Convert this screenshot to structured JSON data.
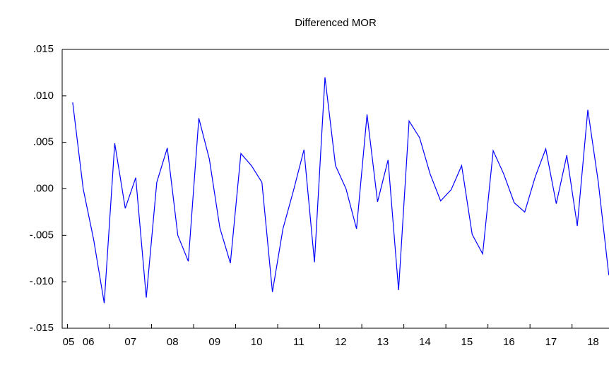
{
  "chart_data": {
    "type": "line",
    "title": "Differenced MOR",
    "categories": [
      "05",
      null,
      "06",
      null,
      null,
      null,
      "07",
      null,
      null,
      null,
      "08",
      null,
      null,
      null,
      "09",
      null,
      null,
      null,
      "10",
      null,
      null,
      null,
      "11",
      null,
      null,
      null,
      "12",
      null,
      null,
      null,
      "13",
      null,
      null,
      null,
      "14",
      null,
      null,
      null,
      "15",
      null,
      null,
      null,
      "16",
      null,
      null,
      null,
      "17",
      null,
      null,
      null,
      "18",
      null,
      null
    ],
    "series": [
      {
        "name": "MOR",
        "color": "#0000ff",
        "values": [
          null,
          0.0093,
          0.0,
          -0.0055,
          -0.0123,
          0.0049,
          -0.0021,
          0.0012,
          -0.0117,
          0.0007,
          0.0044,
          -0.005,
          -0.0078,
          0.0076,
          0.0032,
          -0.0042,
          -0.008,
          0.0038,
          0.0025,
          0.0007,
          -0.0111,
          -0.0043,
          -0.0002,
          0.0042,
          -0.0079,
          0.012,
          0.0025,
          0.0,
          -0.0043,
          0.008,
          -0.0014,
          0.0031,
          -0.0109,
          0.0073,
          0.0055,
          0.0016,
          -0.0013,
          -0.0001,
          0.0025,
          -0.0049,
          -0.007,
          0.0041,
          0.0016,
          -0.0015,
          -0.0025,
          0.0013,
          0.0043,
          -0.0016,
          0.0036,
          -0.004,
          0.0085,
          0.0007,
          -0.0093
        ]
      }
    ],
    "ylim": [
      -0.015,
      0.015
    ],
    "yticks": [
      {
        "value": -0.015,
        "label": "-.015"
      },
      {
        "value": -0.01,
        "label": "-.010"
      },
      {
        "value": -0.005,
        "label": "-.005"
      },
      {
        "value": 0.0,
        "label": ".000"
      },
      {
        "value": 0.005,
        "label": ".005"
      },
      {
        "value": 0.01,
        "label": ".010"
      },
      {
        "value": 0.015,
        "label": ".015"
      }
    ],
    "grid": false
  }
}
